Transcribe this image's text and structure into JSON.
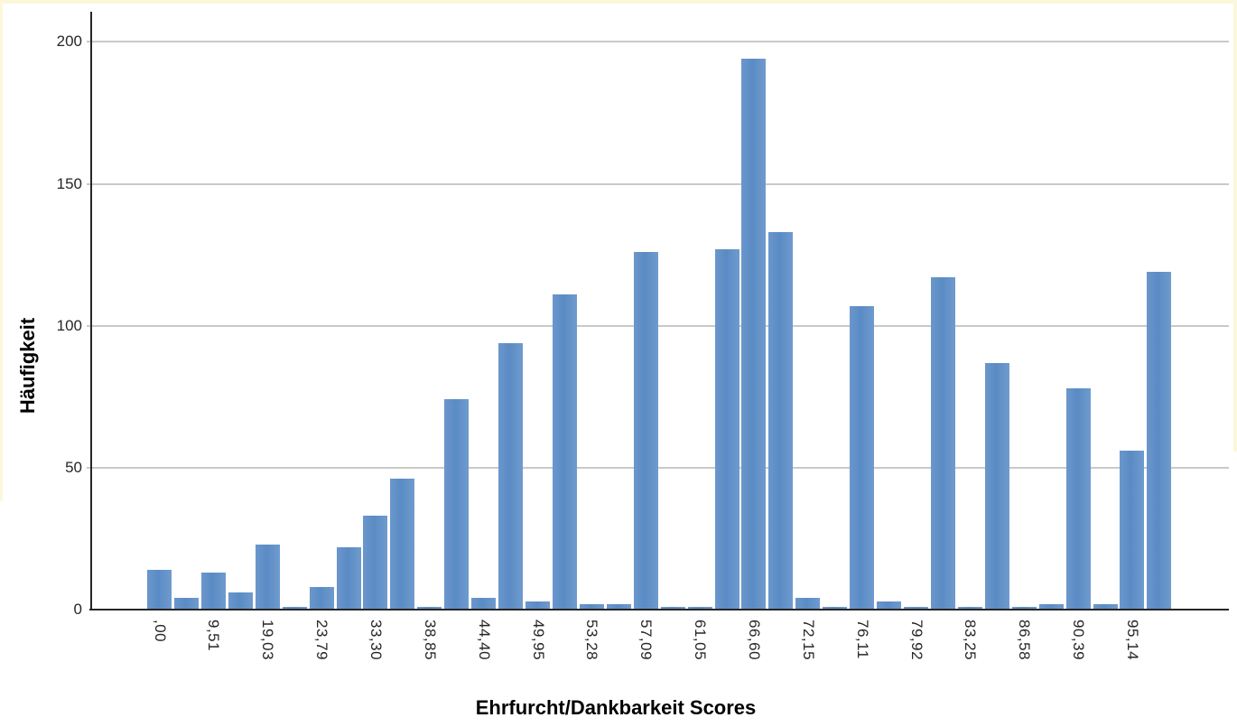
{
  "chart_data": {
    "type": "bar",
    "title": "",
    "xlabel": "Ehrfurcht/Dankbarkeit Scores",
    "ylabel": "Häufigkeit",
    "ylim": [
      0,
      210
    ],
    "grid": "horizontal",
    "legend": "none",
    "y_tick_labels": [
      "0",
      "50",
      "100",
      "150",
      "200"
    ],
    "y_tick_values": [
      0,
      50,
      100,
      150,
      200
    ],
    "x_tick_labels": [
      ",00",
      "9,51",
      "19,03",
      "23,79",
      "33,30",
      "38,85",
      "44,40",
      "49,95",
      "53,28",
      "57,09",
      "61,05",
      "66,60",
      "72,15",
      "76,11",
      "79,92",
      "83,25",
      "86,58",
      "90,39",
      "95,14"
    ],
    "x_tick_label_bar_indices": [
      0,
      2,
      4,
      6,
      8,
      10,
      12,
      14,
      16,
      18,
      20,
      22,
      24,
      26,
      28,
      30,
      32,
      34,
      36
    ],
    "values": [
      14,
      4,
      13,
      6,
      23,
      1,
      8,
      22,
      33,
      46,
      1,
      74,
      4,
      94,
      3,
      111,
      2,
      2,
      126,
      1,
      1,
      127,
      194,
      133,
      4,
      1,
      107,
      3,
      1,
      117,
      1,
      87,
      1,
      2,
      78,
      2,
      56,
      119
    ],
    "colors": {
      "bar": "#5e90c8",
      "gridline": "#c9c9c9",
      "axis": "#262626",
      "text": "#262626",
      "page_edge": "#fcf7da",
      "background": "#ffffff"
    }
  }
}
